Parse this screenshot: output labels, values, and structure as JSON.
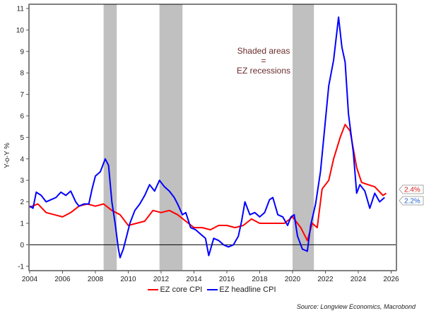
{
  "chart_data": {
    "type": "line",
    "title": "",
    "xlabel": "",
    "ylabel": "Y-o-Y %",
    "xlim": [
      2004,
      2026
    ],
    "ylim": [
      -1.2,
      11.2
    ],
    "xticks": [
      2004,
      2006,
      2008,
      2010,
      2012,
      2014,
      2016,
      2018,
      2020,
      2022,
      2024,
      2026
    ],
    "yticks": [
      -1,
      0,
      1,
      2,
      3,
      4,
      5,
      6,
      7,
      8,
      9,
      10,
      11
    ],
    "grid": false,
    "zero_line": true,
    "recessions": [
      [
        2008.5,
        2009.3
      ],
      [
        2011.9,
        2013.3
      ],
      [
        2020.0,
        2021.3
      ]
    ],
    "annotation": [
      "Shaded areas",
      "=",
      "EZ recessions"
    ],
    "legend_position": "bottom",
    "series": [
      {
        "name": "EZ core CPI",
        "color": "#ff0000",
        "end_label": "2.4%",
        "points": [
          [
            2004.0,
            1.75
          ],
          [
            2004.5,
            1.9
          ],
          [
            2005.0,
            1.5
          ],
          [
            2005.5,
            1.4
          ],
          [
            2006.0,
            1.3
          ],
          [
            2006.5,
            1.5
          ],
          [
            2007.0,
            1.8
          ],
          [
            2007.5,
            1.9
          ],
          [
            2008.0,
            1.8
          ],
          [
            2008.5,
            1.9
          ],
          [
            2009.0,
            1.6
          ],
          [
            2009.5,
            1.4
          ],
          [
            2010.0,
            0.9
          ],
          [
            2010.5,
            1.0
          ],
          [
            2011.0,
            1.1
          ],
          [
            2011.5,
            1.6
          ],
          [
            2012.0,
            1.5
          ],
          [
            2012.5,
            1.6
          ],
          [
            2013.0,
            1.4
          ],
          [
            2013.5,
            1.1
          ],
          [
            2014.0,
            0.8
          ],
          [
            2014.5,
            0.8
          ],
          [
            2015.0,
            0.7
          ],
          [
            2015.5,
            0.9
          ],
          [
            2016.0,
            0.9
          ],
          [
            2016.5,
            0.8
          ],
          [
            2017.0,
            0.9
          ],
          [
            2017.5,
            1.2
          ],
          [
            2018.0,
            1.0
          ],
          [
            2018.5,
            1.0
          ],
          [
            2019.0,
            1.0
          ],
          [
            2019.5,
            1.0
          ],
          [
            2020.0,
            1.3
          ],
          [
            2020.5,
            0.8
          ],
          [
            2020.9,
            0.2
          ],
          [
            2021.2,
            1.0
          ],
          [
            2021.5,
            0.8
          ],
          [
            2021.8,
            2.6
          ],
          [
            2022.2,
            3.0
          ],
          [
            2022.5,
            4.0
          ],
          [
            2022.9,
            5.0
          ],
          [
            2023.2,
            5.6
          ],
          [
            2023.5,
            5.3
          ],
          [
            2023.9,
            3.6
          ],
          [
            2024.2,
            2.9
          ],
          [
            2024.6,
            2.8
          ],
          [
            2025.0,
            2.7
          ],
          [
            2025.5,
            2.3
          ],
          [
            2025.7,
            2.4
          ]
        ]
      },
      {
        "name": "EZ headline CPI",
        "color": "#0000ff",
        "end_label": "2.2%",
        "points": [
          [
            2004.0,
            1.8
          ],
          [
            2004.2,
            1.7
          ],
          [
            2004.4,
            2.45
          ],
          [
            2004.7,
            2.3
          ],
          [
            2005.0,
            2.0
          ],
          [
            2005.3,
            2.1
          ],
          [
            2005.6,
            2.2
          ],
          [
            2005.9,
            2.45
          ],
          [
            2006.2,
            2.3
          ],
          [
            2006.5,
            2.5
          ],
          [
            2006.8,
            2.0
          ],
          [
            2007.0,
            1.8
          ],
          [
            2007.3,
            1.9
          ],
          [
            2007.6,
            1.9
          ],
          [
            2007.8,
            2.6
          ],
          [
            2008.0,
            3.2
          ],
          [
            2008.3,
            3.4
          ],
          [
            2008.6,
            4.0
          ],
          [
            2008.8,
            3.7
          ],
          [
            2009.0,
            2.0
          ],
          [
            2009.2,
            1.0
          ],
          [
            2009.4,
            -0.2
          ],
          [
            2009.5,
            -0.6
          ],
          [
            2009.7,
            -0.2
          ],
          [
            2009.9,
            0.4
          ],
          [
            2010.1,
            1.0
          ],
          [
            2010.4,
            1.6
          ],
          [
            2010.7,
            1.9
          ],
          [
            2011.0,
            2.3
          ],
          [
            2011.3,
            2.8
          ],
          [
            2011.6,
            2.5
          ],
          [
            2011.9,
            3.0
          ],
          [
            2012.2,
            2.7
          ],
          [
            2012.5,
            2.5
          ],
          [
            2012.8,
            2.2
          ],
          [
            2013.0,
            1.9
          ],
          [
            2013.3,
            1.4
          ],
          [
            2013.5,
            1.5
          ],
          [
            2013.8,
            0.8
          ],
          [
            2014.1,
            0.7
          ],
          [
            2014.4,
            0.5
          ],
          [
            2014.7,
            0.3
          ],
          [
            2014.9,
            -0.5
          ],
          [
            2015.2,
            0.3
          ],
          [
            2015.5,
            0.2
          ],
          [
            2015.8,
            0.0
          ],
          [
            2016.1,
            -0.1
          ],
          [
            2016.4,
            0.0
          ],
          [
            2016.7,
            0.4
          ],
          [
            2016.9,
            1.1
          ],
          [
            2017.1,
            2.0
          ],
          [
            2017.4,
            1.4
          ],
          [
            2017.7,
            1.5
          ],
          [
            2018.0,
            1.3
          ],
          [
            2018.3,
            1.5
          ],
          [
            2018.6,
            2.1
          ],
          [
            2018.8,
            2.2
          ],
          [
            2019.1,
            1.4
          ],
          [
            2019.4,
            1.3
          ],
          [
            2019.7,
            0.9
          ],
          [
            2019.9,
            1.3
          ],
          [
            2020.1,
            1.4
          ],
          [
            2020.3,
            0.4
          ],
          [
            2020.6,
            -0.2
          ],
          [
            2020.9,
            -0.3
          ],
          [
            2021.1,
            0.9
          ],
          [
            2021.4,
            1.9
          ],
          [
            2021.7,
            3.4
          ],
          [
            2021.9,
            5.0
          ],
          [
            2022.2,
            7.4
          ],
          [
            2022.5,
            8.6
          ],
          [
            2022.8,
            10.6
          ],
          [
            2023.0,
            9.2
          ],
          [
            2023.2,
            8.5
          ],
          [
            2023.4,
            6.1
          ],
          [
            2023.7,
            4.3
          ],
          [
            2023.9,
            2.4
          ],
          [
            2024.1,
            2.8
          ],
          [
            2024.4,
            2.5
          ],
          [
            2024.7,
            1.7
          ],
          [
            2025.0,
            2.4
          ],
          [
            2025.3,
            2.0
          ],
          [
            2025.6,
            2.2
          ]
        ]
      }
    ]
  },
  "legend": {
    "items": [
      {
        "label": "EZ core CPI",
        "color": "#ff0000"
      },
      {
        "label": "EZ headline CPI",
        "color": "#0000ff"
      }
    ]
  },
  "source": "Source: Longview Economics, Macrobond"
}
